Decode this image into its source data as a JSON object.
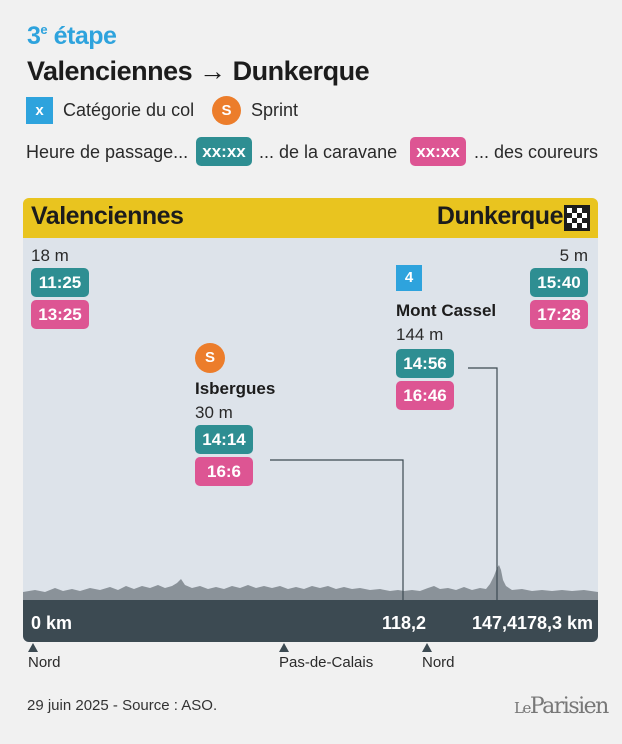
{
  "header": {
    "kicker_num": "3",
    "kicker_sup": "e",
    "kicker_word": "étape",
    "title": "Valenciennes → Dunkerque"
  },
  "legend": {
    "cat_badge": "x",
    "cat_label": "Catégorie du col",
    "sprint_badge": "S",
    "sprint_label": "Sprint",
    "passage_label": "Heure de passage...",
    "caravane_pill": "xx:xx",
    "caravane_label": "... de la caravane",
    "coureurs_pill": "xx:xx",
    "coureurs_label": "... des coureurs"
  },
  "profile": {
    "start": {
      "city": "Valenciennes",
      "altitude": "18 m",
      "caravane": "11:25",
      "coureurs": "13:25",
      "km": "0 km"
    },
    "finish": {
      "city": "Dunkerque",
      "altitude": "5 m",
      "caravane": "15:40",
      "coureurs": "17:28",
      "km": "178,3 km"
    },
    "points": [
      {
        "type": "sprint",
        "badge": "S",
        "name": "Isbergues",
        "altitude": "30 m",
        "caravane": "14:14",
        "coureurs": "16:6",
        "km": "118,2"
      },
      {
        "type": "col",
        "badge": "4",
        "name": "Mont Cassel",
        "altitude": "144 m",
        "caravane": "14:56",
        "coureurs": "16:46",
        "km": "147,4"
      }
    ],
    "regions": [
      "Nord",
      "Pas-de-Calais",
      "Nord"
    ]
  },
  "colors": {
    "accent_blue": "#2ea3dd",
    "sprint_orange": "#ec7d2b",
    "caravane_teal": "#2e8e92",
    "coureurs_pink": "#dd5593",
    "bar_yellow": "#e9c41f",
    "km_bar": "#3c4a52"
  },
  "footer": {
    "source": "29 juin 2025 - Source : ASO.",
    "logo_le": "Le",
    "logo_name": "Parisien"
  }
}
